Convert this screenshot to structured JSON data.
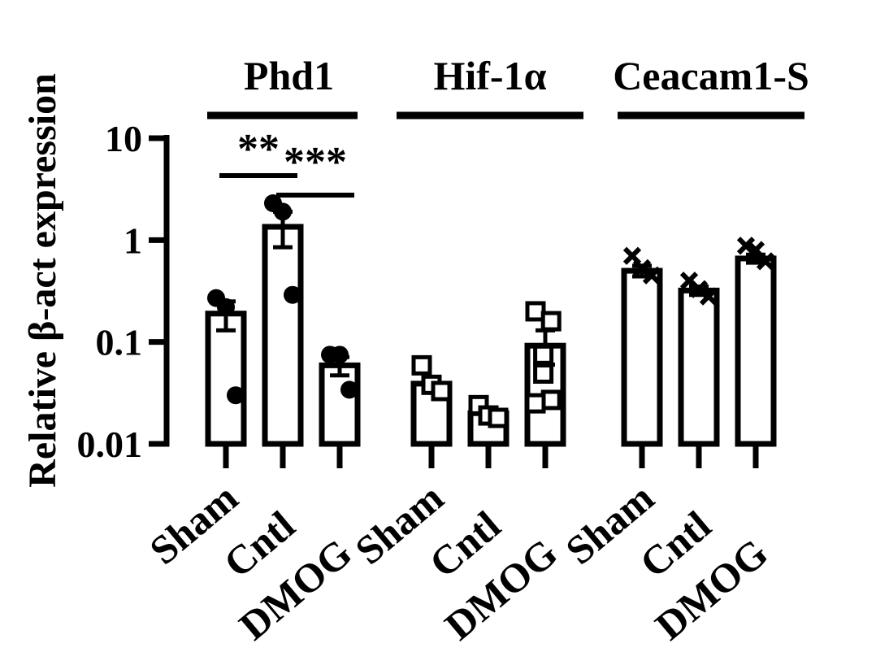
{
  "chart_data": {
    "type": "bar",
    "scale": "log",
    "ylabel": "Relative β-act expression",
    "ylim": [
      0.01,
      10
    ],
    "yticks": [
      {
        "value": 10,
        "label": "10"
      },
      {
        "value": 1,
        "label": "1"
      },
      {
        "value": 0.1,
        "label": "0.1"
      },
      {
        "value": 0.01,
        "label": "0.01"
      }
    ],
    "grid": false,
    "legend": "none",
    "groups": [
      {
        "name": "Phd1",
        "marker": "circle",
        "bars": [
          {
            "label": "Sham",
            "value": 0.19,
            "err": [
              0.13,
              0.25
            ],
            "points": [
              0.27,
              0.22,
              0.03
            ]
          },
          {
            "label": "Cntl",
            "value": 1.35,
            "err": [
              0.85,
              1.9
            ],
            "points": [
              2.3,
              1.9,
              0.29
            ]
          },
          {
            "label": "DMOG",
            "value": 0.059,
            "err": [
              0.047,
              0.071
            ],
            "points": [
              0.075,
              0.075,
              0.034
            ]
          }
        ]
      },
      {
        "name": "Hif-1α",
        "marker": "square",
        "bars": [
          {
            "label": "Sham",
            "value": 0.039,
            "err": [
              0.034,
              0.044
            ],
            "points": [
              0.059,
              0.038,
              0.033
            ]
          },
          {
            "label": "Cntl",
            "value": 0.02,
            "err": [
              0.018,
              0.022
            ],
            "points": [
              0.024,
              0.019,
              0.018
            ]
          },
          {
            "label": "DMOG",
            "value": 0.092,
            "err": [
              0.06,
              0.13
            ],
            "points": [
              0.2,
              0.16,
              0.075,
              0.049,
              0.027,
              0.025
            ]
          }
        ]
      },
      {
        "name": "Ceacam1-S",
        "marker": "cross",
        "bars": [
          {
            "label": "Sham",
            "value": 0.5,
            "err": [
              0.44,
              0.56
            ],
            "points": [
              0.7,
              0.53,
              0.45
            ]
          },
          {
            "label": "Cntl",
            "value": 0.32,
            "err": [
              0.29,
              0.35
            ],
            "points": [
              0.4,
              0.33,
              0.28
            ]
          },
          {
            "label": "DMOG",
            "value": 0.66,
            "err": [
              0.6,
              0.72
            ],
            "points": [
              0.88,
              0.8,
              0.62
            ]
          }
        ]
      }
    ],
    "annotations": [
      {
        "text": "**",
        "from": "Sham",
        "to": "Cntl",
        "group": 0
      },
      {
        "text": "***",
        "from": "Cntl",
        "to": "DMOG",
        "group": 0
      }
    ]
  }
}
